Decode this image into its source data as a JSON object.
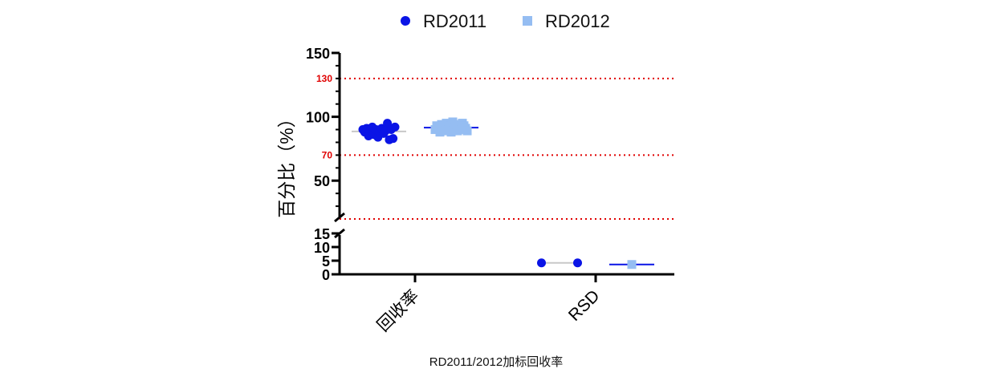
{
  "chart_data": {
    "type": "scatter",
    "caption": "RD2011/2012加标回收率",
    "ylabel": "百分比（%）",
    "categories": [
      "回收率",
      "RSD"
    ],
    "y_axis": {
      "upper_segment": {
        "ylim": [
          20,
          150
        ],
        "ticks": [
          50,
          100,
          150
        ],
        "minor_step": 10
      },
      "lower_segment": {
        "ylim": [
          0,
          15
        ],
        "ticks": [
          0,
          5,
          10,
          15
        ]
      },
      "axis_break": true
    },
    "reference_lines": [
      {
        "value": 130,
        "label": "130",
        "color": "#e00000",
        "style": "dotted"
      },
      {
        "value": 70,
        "label": "70",
        "color": "#e00000",
        "style": "dotted"
      },
      {
        "value": 20,
        "label": "",
        "color": "#e00000",
        "style": "dotted"
      }
    ],
    "legend": {
      "position": "top-center"
    },
    "grid": false,
    "series": [
      {
        "name": "RD2011",
        "marker": "circle",
        "color": "#0a14e6",
        "points": {
          "回收率": [
            90,
            88,
            91,
            85,
            89,
            92,
            86,
            90,
            84,
            88,
            91,
            87,
            89,
            95,
            82,
            90,
            83,
            92
          ],
          "RSD": [
            4.2,
            4.2
          ]
        },
        "mean": {
          "回收率": 88.5,
          "RSD": 4.2
        },
        "mean_line_color": "#c8c8c8"
      },
      {
        "name": "RD2012",
        "marker": "square",
        "color": "#95bdf2",
        "points": {
          "回收率": [
            90,
            93,
            91,
            88,
            94,
            92,
            89,
            95,
            90,
            93,
            88,
            96,
            91,
            94,
            89,
            92,
            90,
            95,
            93,
            91,
            89
          ],
          "RSD": [
            3.6
          ]
        },
        "mean": {
          "回收率": 91.5,
          "RSD": 3.6
        },
        "mean_line_color": "#0a14e6"
      }
    ]
  }
}
